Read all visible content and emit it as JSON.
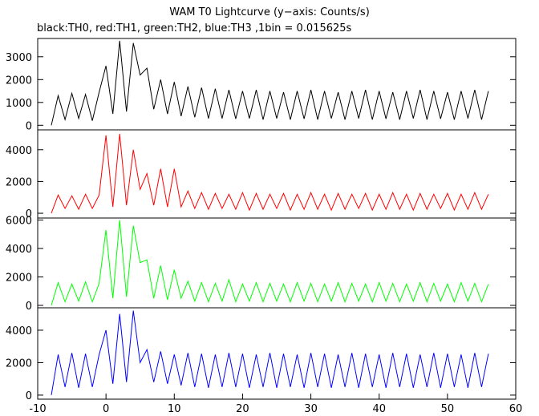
{
  "chart_data": [
    {
      "type": "line",
      "title": "WAM T0 Lightcurve (y−axis: Counts/s)",
      "subtitle": "black:TH0, red:TH1, green:TH2, blue:TH3 ,1bin = 0.015625s",
      "x": [
        -8,
        -7,
        -6,
        -5,
        -4,
        -3,
        -2,
        -1,
        0,
        1,
        2,
        3,
        4,
        5,
        6,
        7,
        8,
        9,
        10,
        11,
        12,
        13,
        14,
        15,
        16,
        17,
        18,
        19,
        20,
        21,
        22,
        23,
        24,
        25,
        26,
        27,
        28,
        29,
        30,
        31,
        32,
        33,
        34,
        35,
        36,
        37,
        38,
        39,
        40,
        41,
        42,
        43,
        44,
        45,
        46,
        47,
        48,
        49,
        50,
        51,
        52,
        53,
        54,
        55,
        56
      ],
      "series": [
        {
          "color": "#000000",
          "values": [
            0,
            1300,
            250,
            1400,
            300,
            1350,
            200,
            1450,
            2600,
            500,
            3700,
            600,
            3600,
            2200,
            2500,
            700,
            2000,
            500,
            1900,
            400,
            1700,
            350,
            1650,
            300,
            1600,
            300,
            1550,
            280,
            1500,
            300,
            1550,
            250,
            1500,
            300,
            1450,
            250,
            1500,
            280,
            1550,
            250,
            1500,
            300,
            1450,
            250,
            1500,
            300,
            1550,
            250,
            1500,
            280,
            1450,
            250,
            1500,
            300,
            1550,
            250,
            1500,
            280,
            1450,
            250,
            1500,
            300,
            1550,
            250,
            1500
          ]
        }
      ],
      "xlim": [
        -10,
        60
      ],
      "ylim": [
        -200,
        3800
      ],
      "yticks": [
        0,
        1000,
        2000,
        3000
      ]
    },
    {
      "type": "line",
      "x": [
        -8,
        -7,
        -6,
        -5,
        -4,
        -3,
        -2,
        -1,
        0,
        1,
        2,
        3,
        4,
        5,
        6,
        7,
        8,
        9,
        10,
        11,
        12,
        13,
        14,
        15,
        16,
        17,
        18,
        19,
        20,
        21,
        22,
        23,
        24,
        25,
        26,
        27,
        28,
        29,
        30,
        31,
        32,
        33,
        34,
        35,
        36,
        37,
        38,
        39,
        40,
        41,
        42,
        43,
        44,
        45,
        46,
        47,
        48,
        49,
        50,
        51,
        52,
        53,
        54,
        55,
        56
      ],
      "series": [
        {
          "color": "#ff0000",
          "values": [
            0,
            1150,
            300,
            1100,
            250,
            1200,
            300,
            1150,
            4900,
            400,
            5000,
            500,
            4000,
            1500,
            2500,
            500,
            2800,
            400,
            2800,
            400,
            1400,
            300,
            1300,
            250,
            1250,
            300,
            1200,
            250,
            1300,
            200,
            1250,
            250,
            1200,
            300,
            1250,
            200,
            1200,
            250,
            1300,
            250,
            1200,
            200,
            1250,
            250,
            1200,
            300,
            1250,
            200,
            1200,
            250,
            1300,
            250,
            1200,
            200,
            1250,
            250,
            1200,
            300,
            1250,
            200,
            1200,
            250,
            1300,
            250,
            1200
          ]
        }
      ],
      "xlim": [
        -10,
        60
      ],
      "ylim": [
        -300,
        5250
      ],
      "yticks": [
        0,
        2000,
        4000
      ]
    },
    {
      "type": "line",
      "x": [
        -8,
        -7,
        -6,
        -5,
        -4,
        -3,
        -2,
        -1,
        0,
        1,
        2,
        3,
        4,
        5,
        6,
        7,
        8,
        9,
        10,
        11,
        12,
        13,
        14,
        15,
        16,
        17,
        18,
        19,
        20,
        21,
        22,
        23,
        24,
        25,
        26,
        27,
        28,
        29,
        30,
        31,
        32,
        33,
        34,
        35,
        36,
        37,
        38,
        39,
        40,
        41,
        42,
        43,
        44,
        45,
        46,
        47,
        48,
        49,
        50,
        51,
        52,
        53,
        54,
        55,
        56
      ],
      "series": [
        {
          "color": "#00ff00",
          "values": [
            0,
            1600,
            250,
            1500,
            300,
            1650,
            250,
            1550,
            5300,
            500,
            6000,
            600,
            5600,
            3000,
            3200,
            500,
            2800,
            400,
            2500,
            500,
            1700,
            300,
            1600,
            250,
            1550,
            300,
            1800,
            250,
            1500,
            300,
            1600,
            250,
            1550,
            300,
            1500,
            250,
            1600,
            300,
            1550,
            250,
            1500,
            300,
            1600,
            250,
            1550,
            300,
            1500,
            250,
            1600,
            300,
            1550,
            250,
            1500,
            300,
            1600,
            250,
            1550,
            300,
            1500,
            250,
            1600,
            300,
            1550,
            250,
            1500
          ]
        }
      ],
      "xlim": [
        -10,
        60
      ],
      "ylim": [
        -170,
        6140
      ],
      "yticks": [
        0,
        2000,
        4000,
        6000
      ]
    },
    {
      "type": "line",
      "x": [
        -8,
        -7,
        -6,
        -5,
        -4,
        -3,
        -2,
        -1,
        0,
        1,
        2,
        3,
        4,
        5,
        6,
        7,
        8,
        9,
        10,
        11,
        12,
        13,
        14,
        15,
        16,
        17,
        18,
        19,
        20,
        21,
        22,
        23,
        24,
        25,
        26,
        27,
        28,
        29,
        30,
        31,
        32,
        33,
        34,
        35,
        36,
        37,
        38,
        39,
        40,
        41,
        42,
        43,
        44,
        45,
        46,
        47,
        48,
        49,
        50,
        51,
        52,
        53,
        54,
        55,
        56
      ],
      "series": [
        {
          "color": "#0000ff",
          "values": [
            0,
            2500,
            500,
            2600,
            450,
            2550,
            500,
            2500,
            4000,
            700,
            5000,
            800,
            5200,
            2000,
            2800,
            800,
            2700,
            700,
            2500,
            600,
            2600,
            500,
            2550,
            450,
            2500,
            500,
            2600,
            500,
            2550,
            450,
            2500,
            500,
            2600,
            450,
            2550,
            500,
            2500,
            450,
            2600,
            500,
            2550,
            450,
            2500,
            500,
            2600,
            450,
            2550,
            500,
            2500,
            450,
            2600,
            500,
            2550,
            450,
            2500,
            500,
            2600,
            450,
            2550,
            500,
            2500,
            450,
            2600,
            500,
            2550
          ]
        }
      ],
      "xlim": [
        -10,
        60
      ],
      "ylim": [
        -250,
        5380
      ],
      "yticks": [
        0,
        2000,
        4000
      ],
      "xticks": [
        -10,
        0,
        10,
        20,
        30,
        40,
        50,
        60
      ]
    }
  ]
}
